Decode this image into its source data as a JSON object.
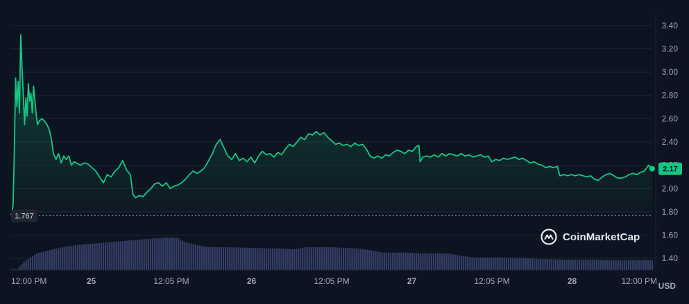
{
  "watermark": "CoinMarketCap",
  "currency_label": "USD",
  "colors": {
    "background": "#0d1421",
    "line": "#16c784",
    "grid": "#222531",
    "axis_text": "#a1a7bb",
    "volume": "#3a4470",
    "baseline": "#a1a7bb"
  },
  "chart_data": {
    "type": "line",
    "x_ticks": [
      "12:00 PM",
      "25",
      "12:05 PM",
      "26",
      "12:05 PM",
      "27",
      "12:05 PM",
      "28",
      "12:00 PM"
    ],
    "y_ticks": [
      "3.40",
      "3.20",
      "3.00",
      "2.80",
      "2.60",
      "2.40",
      "2.20",
      "2.00",
      "1.80",
      "1.60",
      "1.40"
    ],
    "ylim": [
      1.3,
      3.5
    ],
    "baseline_value": 1.767,
    "baseline_label": "1.767",
    "last_value": 2.17,
    "last_label": "2.17",
    "price_series": {
      "points": [
        [
          0.0,
          1.77
        ],
        [
          0.003,
          1.85
        ],
        [
          0.005,
          2.3
        ],
        [
          0.007,
          2.95
        ],
        [
          0.009,
          2.7
        ],
        [
          0.011,
          2.92
        ],
        [
          0.013,
          2.65
        ],
        [
          0.015,
          3.32
        ],
        [
          0.017,
          3.05
        ],
        [
          0.019,
          2.8
        ],
        [
          0.021,
          2.55
        ],
        [
          0.023,
          2.78
        ],
        [
          0.025,
          2.62
        ],
        [
          0.027,
          2.9
        ],
        [
          0.029,
          2.75
        ],
        [
          0.031,
          2.82
        ],
        [
          0.033,
          2.65
        ],
        [
          0.035,
          2.88
        ],
        [
          0.038,
          2.7
        ],
        [
          0.041,
          2.55
        ],
        [
          0.044,
          2.58
        ],
        [
          0.048,
          2.6
        ],
        [
          0.052,
          2.58
        ],
        [
          0.056,
          2.55
        ],
        [
          0.06,
          2.5
        ],
        [
          0.063,
          2.42
        ],
        [
          0.066,
          2.3
        ],
        [
          0.07,
          2.25
        ],
        [
          0.074,
          2.3
        ],
        [
          0.078,
          2.22
        ],
        [
          0.082,
          2.28
        ],
        [
          0.086,
          2.25
        ],
        [
          0.09,
          2.28
        ],
        [
          0.094,
          2.2
        ],
        [
          0.098,
          2.23
        ],
        [
          0.102,
          2.22
        ],
        [
          0.108,
          2.2
        ],
        [
          0.114,
          2.22
        ],
        [
          0.12,
          2.21
        ],
        [
          0.126,
          2.18
        ],
        [
          0.132,
          2.15
        ],
        [
          0.138,
          2.1
        ],
        [
          0.144,
          2.05
        ],
        [
          0.15,
          2.12
        ],
        [
          0.156,
          2.1
        ],
        [
          0.162,
          2.15
        ],
        [
          0.168,
          2.18
        ],
        [
          0.174,
          2.24
        ],
        [
          0.18,
          2.16
        ],
        [
          0.186,
          2.12
        ],
        [
          0.19,
          1.95
        ],
        [
          0.194,
          1.92
        ],
        [
          0.2,
          1.94
        ],
        [
          0.206,
          1.93
        ],
        [
          0.212,
          1.97
        ],
        [
          0.218,
          2.0
        ],
        [
          0.224,
          2.04
        ],
        [
          0.23,
          2.05
        ],
        [
          0.236,
          2.02
        ],
        [
          0.242,
          2.05
        ],
        [
          0.248,
          2.0
        ],
        [
          0.254,
          2.02
        ],
        [
          0.26,
          2.03
        ],
        [
          0.266,
          2.05
        ],
        [
          0.272,
          2.08
        ],
        [
          0.278,
          2.12
        ],
        [
          0.284,
          2.15
        ],
        [
          0.29,
          2.13
        ],
        [
          0.296,
          2.15
        ],
        [
          0.302,
          2.18
        ],
        [
          0.308,
          2.24
        ],
        [
          0.314,
          2.3
        ],
        [
          0.32,
          2.38
        ],
        [
          0.326,
          2.42
        ],
        [
          0.332,
          2.35
        ],
        [
          0.338,
          2.28
        ],
        [
          0.344,
          2.25
        ],
        [
          0.35,
          2.3
        ],
        [
          0.356,
          2.24
        ],
        [
          0.362,
          2.26
        ],
        [
          0.368,
          2.23
        ],
        [
          0.374,
          2.27
        ],
        [
          0.38,
          2.22
        ],
        [
          0.386,
          2.28
        ],
        [
          0.392,
          2.32
        ],
        [
          0.398,
          2.29
        ],
        [
          0.404,
          2.3
        ],
        [
          0.41,
          2.27
        ],
        [
          0.416,
          2.31
        ],
        [
          0.422,
          2.29
        ],
        [
          0.428,
          2.34
        ],
        [
          0.434,
          2.38
        ],
        [
          0.44,
          2.36
        ],
        [
          0.446,
          2.4
        ],
        [
          0.452,
          2.44
        ],
        [
          0.458,
          2.42
        ],
        [
          0.464,
          2.47
        ],
        [
          0.47,
          2.46
        ],
        [
          0.476,
          2.49
        ],
        [
          0.482,
          2.46
        ],
        [
          0.488,
          2.48
        ],
        [
          0.494,
          2.44
        ],
        [
          0.5,
          2.41
        ],
        [
          0.506,
          2.38
        ],
        [
          0.512,
          2.39
        ],
        [
          0.518,
          2.37
        ],
        [
          0.524,
          2.38
        ],
        [
          0.53,
          2.36
        ],
        [
          0.536,
          2.39
        ],
        [
          0.542,
          2.37
        ],
        [
          0.548,
          2.38
        ],
        [
          0.554,
          2.34
        ],
        [
          0.56,
          2.28
        ],
        [
          0.566,
          2.26
        ],
        [
          0.572,
          2.28
        ],
        [
          0.578,
          2.26
        ],
        [
          0.584,
          2.29
        ],
        [
          0.59,
          2.28
        ],
        [
          0.596,
          2.31
        ],
        [
          0.602,
          2.33
        ],
        [
          0.608,
          2.32
        ],
        [
          0.614,
          2.3
        ],
        [
          0.62,
          2.33
        ],
        [
          0.626,
          2.32
        ],
        [
          0.632,
          2.36
        ],
        [
          0.636,
          2.37
        ],
        [
          0.638,
          2.23
        ],
        [
          0.642,
          2.27
        ],
        [
          0.648,
          2.28
        ],
        [
          0.654,
          2.27
        ],
        [
          0.66,
          2.29
        ],
        [
          0.666,
          2.27
        ],
        [
          0.672,
          2.3
        ],
        [
          0.678,
          2.28
        ],
        [
          0.684,
          2.3
        ],
        [
          0.69,
          2.29
        ],
        [
          0.696,
          2.28
        ],
        [
          0.702,
          2.3
        ],
        [
          0.708,
          2.28
        ],
        [
          0.714,
          2.29
        ],
        [
          0.72,
          2.27
        ],
        [
          0.726,
          2.28
        ],
        [
          0.732,
          2.29
        ],
        [
          0.738,
          2.27
        ],
        [
          0.744,
          2.28
        ],
        [
          0.75,
          2.23
        ],
        [
          0.756,
          2.25
        ],
        [
          0.762,
          2.24
        ],
        [
          0.768,
          2.26
        ],
        [
          0.774,
          2.25
        ],
        [
          0.78,
          2.26
        ],
        [
          0.786,
          2.27
        ],
        [
          0.792,
          2.25
        ],
        [
          0.798,
          2.26
        ],
        [
          0.804,
          2.24
        ],
        [
          0.81,
          2.22
        ],
        [
          0.816,
          2.23
        ],
        [
          0.822,
          2.21
        ],
        [
          0.828,
          2.2
        ],
        [
          0.834,
          2.18
        ],
        [
          0.84,
          2.19
        ],
        [
          0.846,
          2.18
        ],
        [
          0.852,
          2.19
        ],
        [
          0.856,
          2.11
        ],
        [
          0.862,
          2.12
        ],
        [
          0.868,
          2.11
        ],
        [
          0.874,
          2.12
        ],
        [
          0.88,
          2.11
        ],
        [
          0.886,
          2.12
        ],
        [
          0.892,
          2.11
        ],
        [
          0.898,
          2.1
        ],
        [
          0.904,
          2.11
        ],
        [
          0.91,
          2.08
        ],
        [
          0.916,
          2.07
        ],
        [
          0.922,
          2.1
        ],
        [
          0.928,
          2.12
        ],
        [
          0.934,
          2.13
        ],
        [
          0.94,
          2.11
        ],
        [
          0.946,
          2.09
        ],
        [
          0.952,
          2.09
        ],
        [
          0.958,
          2.1
        ],
        [
          0.964,
          2.12
        ],
        [
          0.97,
          2.13
        ],
        [
          0.976,
          2.12
        ],
        [
          0.982,
          2.14
        ],
        [
          0.988,
          2.15
        ],
        [
          0.994,
          2.2
        ],
        [
          1.0,
          2.17
        ]
      ]
    },
    "volume_series": {
      "points": [
        [
          0.0,
          0.02
        ],
        [
          0.01,
          0.03
        ],
        [
          0.02,
          0.2
        ],
        [
          0.03,
          0.3
        ],
        [
          0.04,
          0.4
        ],
        [
          0.06,
          0.48
        ],
        [
          0.08,
          0.55
        ],
        [
          0.1,
          0.6
        ],
        [
          0.13,
          0.64
        ],
        [
          0.16,
          0.68
        ],
        [
          0.19,
          0.72
        ],
        [
          0.22,
          0.76
        ],
        [
          0.24,
          0.78
        ],
        [
          0.26,
          0.78
        ],
        [
          0.27,
          0.68
        ],
        [
          0.29,
          0.6
        ],
        [
          0.31,
          0.55
        ],
        [
          0.34,
          0.55
        ],
        [
          0.38,
          0.53
        ],
        [
          0.42,
          0.52
        ],
        [
          0.44,
          0.5
        ],
        [
          0.46,
          0.55
        ],
        [
          0.5,
          0.55
        ],
        [
          0.54,
          0.52
        ],
        [
          0.56,
          0.48
        ],
        [
          0.58,
          0.42
        ],
        [
          0.62,
          0.42
        ],
        [
          0.64,
          0.4
        ],
        [
          0.68,
          0.4
        ],
        [
          0.7,
          0.35
        ],
        [
          0.72,
          0.3
        ],
        [
          0.76,
          0.3
        ],
        [
          0.8,
          0.29
        ],
        [
          0.82,
          0.27
        ],
        [
          0.86,
          0.25
        ],
        [
          0.9,
          0.25
        ],
        [
          0.94,
          0.24
        ],
        [
          0.97,
          0.24
        ],
        [
          1.0,
          0.24
        ]
      ]
    }
  }
}
